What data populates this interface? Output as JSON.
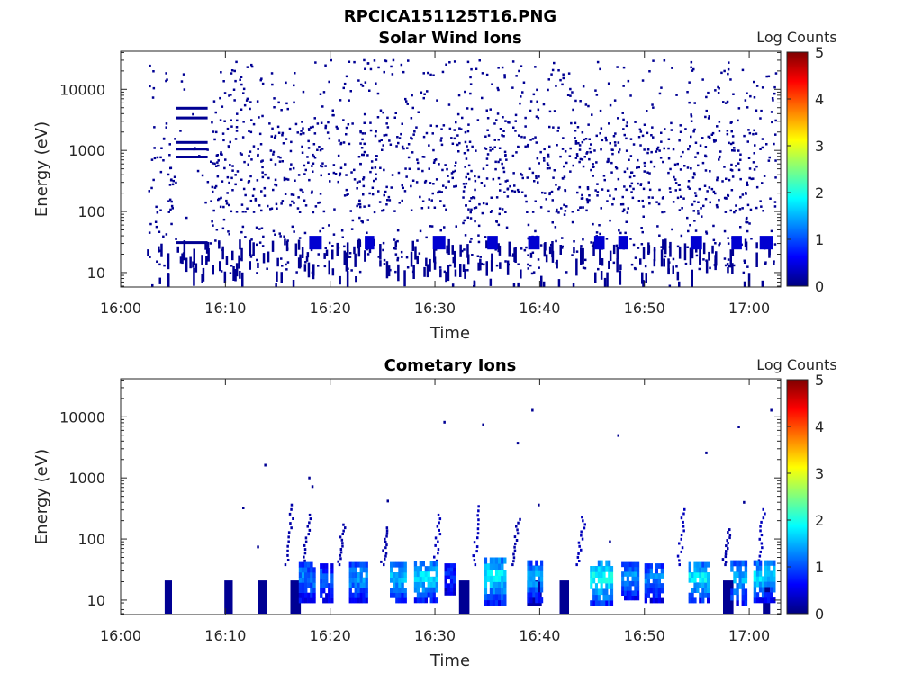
{
  "figure": {
    "file_title": "RPCICA151125T16.PNG"
  },
  "colormap": {
    "name": "jet",
    "stops": [
      "#00007f",
      "#0000ff",
      "#007fff",
      "#00ffff",
      "#7fff7f",
      "#ffff00",
      "#ff7f00",
      "#ff0000",
      "#7f0000"
    ]
  },
  "chart_data": [
    {
      "type": "heatmap",
      "title": "Solar Wind Ions",
      "xlabel": "Time",
      "ylabel": "Energy (eV)",
      "y_scale": "log",
      "ylim": [
        5.8,
        42000
      ],
      "xlim": [
        "16:00",
        "17:03"
      ],
      "x_ticks": [
        "16:00",
        "16:10",
        "16:20",
        "16:30",
        "16:40",
        "16:50",
        "17:00"
      ],
      "y_ticks": [
        10,
        100,
        1000,
        10000
      ],
      "y_tick_labels": [
        "10",
        "100",
        "1000",
        "10000"
      ],
      "colorbar": {
        "label": "Log Counts",
        "min": 0,
        "max": 5,
        "ticks": [
          "0",
          "1",
          "2",
          "3",
          "4",
          "5"
        ]
      },
      "observed_time_range": [
        "16:02:30",
        "17:02:30"
      ],
      "bands": [
        {
          "t0": 5.3,
          "t1": 8.3,
          "energy": 4900,
          "log_counts": 0.1
        },
        {
          "t0": 5.3,
          "t1": 8.3,
          "energy": 3400,
          "log_counts": 0.1
        },
        {
          "t0": 5.3,
          "t1": 8.3,
          "energy": 1350,
          "log_counts": 0.1
        },
        {
          "t0": 5.3,
          "t1": 8.3,
          "energy": 1050,
          "log_counts": 0.1
        },
        {
          "t0": 5.3,
          "t1": 8.3,
          "energy": 780,
          "log_counts": 0.1
        },
        {
          "t0": 5.3,
          "t1": 8.3,
          "energy": 31,
          "log_counts": 0.1
        }
      ],
      "low_energy_blobs": [
        {
          "t0": 18.0,
          "t1": 19.2,
          "e_lo": 24,
          "e_hi": 40,
          "log_counts": 0.4
        },
        {
          "t0": 23.3,
          "t1": 24.2,
          "e_lo": 24,
          "e_hi": 40,
          "log_counts": 0.4
        },
        {
          "t0": 29.8,
          "t1": 31.0,
          "e_lo": 24,
          "e_hi": 40,
          "log_counts": 0.4
        },
        {
          "t0": 35.0,
          "t1": 36.0,
          "e_lo": 24,
          "e_hi": 40,
          "log_counts": 0.4
        },
        {
          "t0": 38.9,
          "t1": 40.0,
          "e_lo": 24,
          "e_hi": 40,
          "log_counts": 0.4
        },
        {
          "t0": 45.2,
          "t1": 46.2,
          "e_lo": 24,
          "e_hi": 40,
          "log_counts": 0.4
        },
        {
          "t0": 47.5,
          "t1": 48.4,
          "e_lo": 24,
          "e_hi": 40,
          "log_counts": 0.4
        },
        {
          "t0": 54.4,
          "t1": 55.5,
          "e_lo": 24,
          "e_hi": 40,
          "log_counts": 0.4
        },
        {
          "t0": 58.3,
          "t1": 59.3,
          "e_lo": 24,
          "e_hi": 40,
          "log_counts": 0.4
        },
        {
          "t0": 61.0,
          "t1": 62.3,
          "e_lo": 24,
          "e_hi": 40,
          "log_counts": 0.4
        }
      ],
      "scatter_log_counts": 0.1
    },
    {
      "type": "heatmap",
      "title": "Cometary Ions",
      "xlabel": "Time",
      "ylabel": "Energy (eV)",
      "y_scale": "log",
      "ylim": [
        5.8,
        42000
      ],
      "xlim": [
        "16:00",
        "17:03"
      ],
      "x_ticks": [
        "16:00",
        "16:10",
        "16:20",
        "16:30",
        "16:40",
        "16:50",
        "17:00"
      ],
      "y_ticks": [
        10,
        100,
        1000,
        10000
      ],
      "y_tick_labels": [
        "10",
        "100",
        "1000",
        "10000"
      ],
      "colorbar": {
        "label": "Log Counts",
        "min": 0,
        "max": 5,
        "ticks": [
          "0",
          "1",
          "2",
          "3",
          "4",
          "5"
        ]
      },
      "low_bursts": [
        {
          "t0": 4.2,
          "t1": 4.9,
          "e_lo": 6,
          "e_hi": 21,
          "log_counts": 0.1
        },
        {
          "t0": 9.9,
          "t1": 10.7,
          "e_lo": 6,
          "e_hi": 21,
          "log_counts": 0.1
        },
        {
          "t0": 13.1,
          "t1": 14.0,
          "e_lo": 6,
          "e_hi": 21,
          "log_counts": 0.1
        },
        {
          "t0": 16.2,
          "t1": 17.2,
          "e_lo": 6,
          "e_hi": 21,
          "log_counts": 0.1
        },
        {
          "t0": 32.3,
          "t1": 33.3,
          "e_lo": 6,
          "e_hi": 21,
          "log_counts": 0.1
        },
        {
          "t0": 38.8,
          "t1": 40.2,
          "e_lo": 8,
          "e_hi": 21,
          "log_counts": 0.2
        },
        {
          "t0": 41.9,
          "t1": 42.8,
          "e_lo": 6,
          "e_hi": 21,
          "log_counts": 0.1
        },
        {
          "t0": 57.5,
          "t1": 58.5,
          "e_lo": 6,
          "e_hi": 21,
          "log_counts": 0.1
        },
        {
          "t0": 61.3,
          "t1": 62.0,
          "e_lo": 6,
          "e_hi": 21,
          "log_counts": 0.1
        }
      ],
      "main_blobs": [
        {
          "t0": 17.0,
          "t1": 18.6,
          "e_lo": 9,
          "e_hi": 42,
          "log_counts": 1.2
        },
        {
          "t0": 19.0,
          "t1": 20.3,
          "e_lo": 9,
          "e_hi": 40,
          "log_counts": 1.0
        },
        {
          "t0": 21.8,
          "t1": 23.6,
          "e_lo": 9,
          "e_hi": 42,
          "log_counts": 1.3
        },
        {
          "t0": 25.7,
          "t1": 27.3,
          "e_lo": 9,
          "e_hi": 42,
          "log_counts": 1.5
        },
        {
          "t0": 28.0,
          "t1": 30.3,
          "e_lo": 9,
          "e_hi": 44,
          "log_counts": 1.6
        },
        {
          "t0": 30.9,
          "t1": 32.0,
          "e_lo": 12,
          "e_hi": 40,
          "log_counts": 0.8
        },
        {
          "t0": 34.7,
          "t1": 36.8,
          "e_lo": 8,
          "e_hi": 50,
          "log_counts": 1.7
        },
        {
          "t0": 38.8,
          "t1": 40.3,
          "e_lo": 9,
          "e_hi": 45,
          "log_counts": 1.4
        },
        {
          "t0": 44.8,
          "t1": 47.0,
          "e_lo": 8,
          "e_hi": 45,
          "log_counts": 1.9
        },
        {
          "t0": 47.8,
          "t1": 49.5,
          "e_lo": 10,
          "e_hi": 42,
          "log_counts": 1.3
        },
        {
          "t0": 50.0,
          "t1": 51.8,
          "e_lo": 9,
          "e_hi": 40,
          "log_counts": 1.2
        },
        {
          "t0": 54.2,
          "t1": 56.2,
          "e_lo": 9,
          "e_hi": 42,
          "log_counts": 1.7
        },
        {
          "t0": 58.2,
          "t1": 59.8,
          "e_lo": 8,
          "e_hi": 45,
          "log_counts": 1.4
        },
        {
          "t0": 60.4,
          "t1": 62.5,
          "e_lo": 9,
          "e_hi": 45,
          "log_counts": 1.6
        }
      ],
      "dispersion_tails": [
        {
          "t": 16.8,
          "e_top": 380,
          "log_counts": 0.2
        },
        {
          "t": 18.4,
          "e_top": 260,
          "log_counts": 0.2
        },
        {
          "t": 21.7,
          "e_top": 180,
          "log_counts": 0.2
        },
        {
          "t": 25.9,
          "e_top": 160,
          "log_counts": 0.2
        },
        {
          "t": 30.9,
          "e_top": 260,
          "log_counts": 0.3
        },
        {
          "t": 34.6,
          "e_top": 360,
          "log_counts": 0.3
        },
        {
          "t": 38.4,
          "e_top": 220,
          "log_counts": 0.2
        },
        {
          "t": 44.6,
          "e_top": 240,
          "log_counts": 0.3
        },
        {
          "t": 54.2,
          "e_top": 320,
          "log_counts": 0.3
        },
        {
          "t": 58.5,
          "e_top": 150,
          "log_counts": 0.2
        },
        {
          "t": 61.8,
          "e_top": 320,
          "log_counts": 0.3
        }
      ],
      "isolated_points": [
        {
          "t": 17.9,
          "e": 1050,
          "log_counts": 0.1
        },
        {
          "t": 18.2,
          "e": 760,
          "log_counts": 0.1
        },
        {
          "t": 13.7,
          "e": 1700,
          "log_counts": 0.1
        },
        {
          "t": 11.6,
          "e": 340,
          "log_counts": 0.1
        },
        {
          "t": 30.8,
          "e": 8600,
          "log_counts": 0.1
        },
        {
          "t": 34.5,
          "e": 7800,
          "log_counts": 0.1
        },
        {
          "t": 37.8,
          "e": 3900,
          "log_counts": 0.1
        },
        {
          "t": 39.2,
          "e": 13500,
          "log_counts": 0.1
        },
        {
          "t": 47.4,
          "e": 5200,
          "log_counts": 0.1
        },
        {
          "t": 55.8,
          "e": 2700,
          "log_counts": 0.1
        },
        {
          "t": 58.9,
          "e": 7200,
          "log_counts": 0.1
        },
        {
          "t": 62.0,
          "e": 13500,
          "log_counts": 0.1
        },
        {
          "t": 25.4,
          "e": 440,
          "log_counts": 0.1
        },
        {
          "t": 39.8,
          "e": 380,
          "log_counts": 0.1
        },
        {
          "t": 46.6,
          "e": 95,
          "log_counts": 0.1
        },
        {
          "t": 59.4,
          "e": 420,
          "log_counts": 0.1
        },
        {
          "t": 13.0,
          "e": 78,
          "log_counts": 0.1
        }
      ]
    }
  ]
}
